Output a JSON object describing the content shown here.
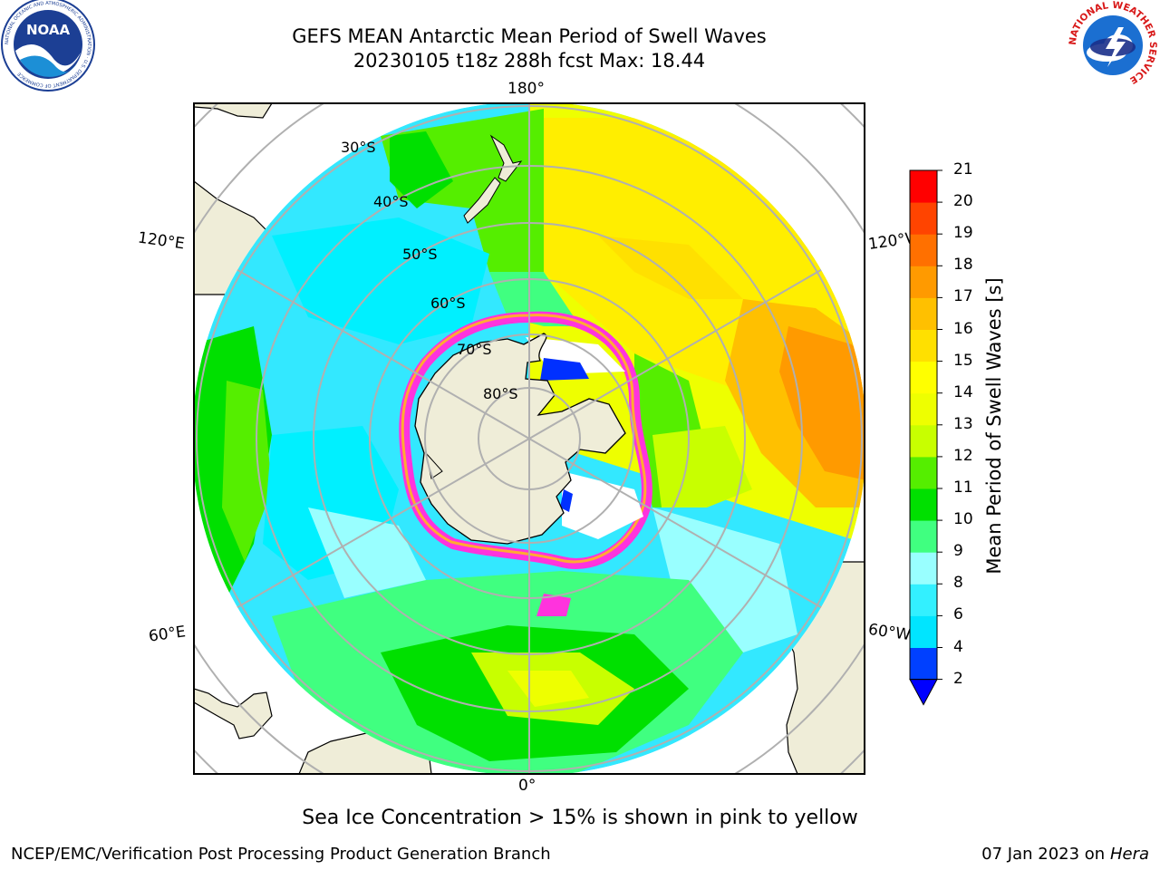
{
  "header": {
    "title_line1": "GEFS MEAN Antarctic Mean Period of Swell Waves",
    "title_line2": "20230105 t18z 288h fcst   Max: 18.44"
  },
  "logos": {
    "noaa_text": "NOAA",
    "noaa_ring_text": "NATIONAL OCEANIC AND ATMOSPHERIC ADMINISTRATION · U.S. DEPARTMENT OF COMMERCE",
    "nws_ring_text": "NATIONAL WEATHER SERVICE"
  },
  "map": {
    "projection": "south-polar-stereographic",
    "longitude_labels": {
      "top": "180°",
      "bottom": "0°",
      "upper_left": "120°E",
      "upper_right": "120°W",
      "lower_left": "60°E",
      "lower_right": "60°W"
    },
    "latitude_labels": [
      "30°S",
      "40°S",
      "50°S",
      "60°S",
      "70°S",
      "80°S"
    ]
  },
  "colorbar": {
    "label": "Mean Period of Swell Waves [s]",
    "ticks": [
      "2",
      "4",
      "6",
      "8",
      "9",
      "10",
      "11",
      "12",
      "13",
      "14",
      "15",
      "16",
      "17",
      "18",
      "19",
      "20",
      "21"
    ],
    "colors": [
      "#0040ff",
      "#00e5ff",
      "#33f0ff",
      "#99ffff",
      "#40ff80",
      "#00e000",
      "#55ee00",
      "#c8ff00",
      "#eeff00",
      "#ffff00",
      "#ffe000",
      "#ffc000",
      "#ff9a00",
      "#ff7000",
      "#ff4400",
      "#ff0000"
    ],
    "extend_color": "#0000ff"
  },
  "caption": "Sea Ice Concentration > 15% is shown in pink to yellow",
  "footer": {
    "left": "NCEP/EMC/Verification Post Processing Product Generation Branch",
    "right_date": "07 Jan 2023 on ",
    "right_host": "Hera"
  }
}
